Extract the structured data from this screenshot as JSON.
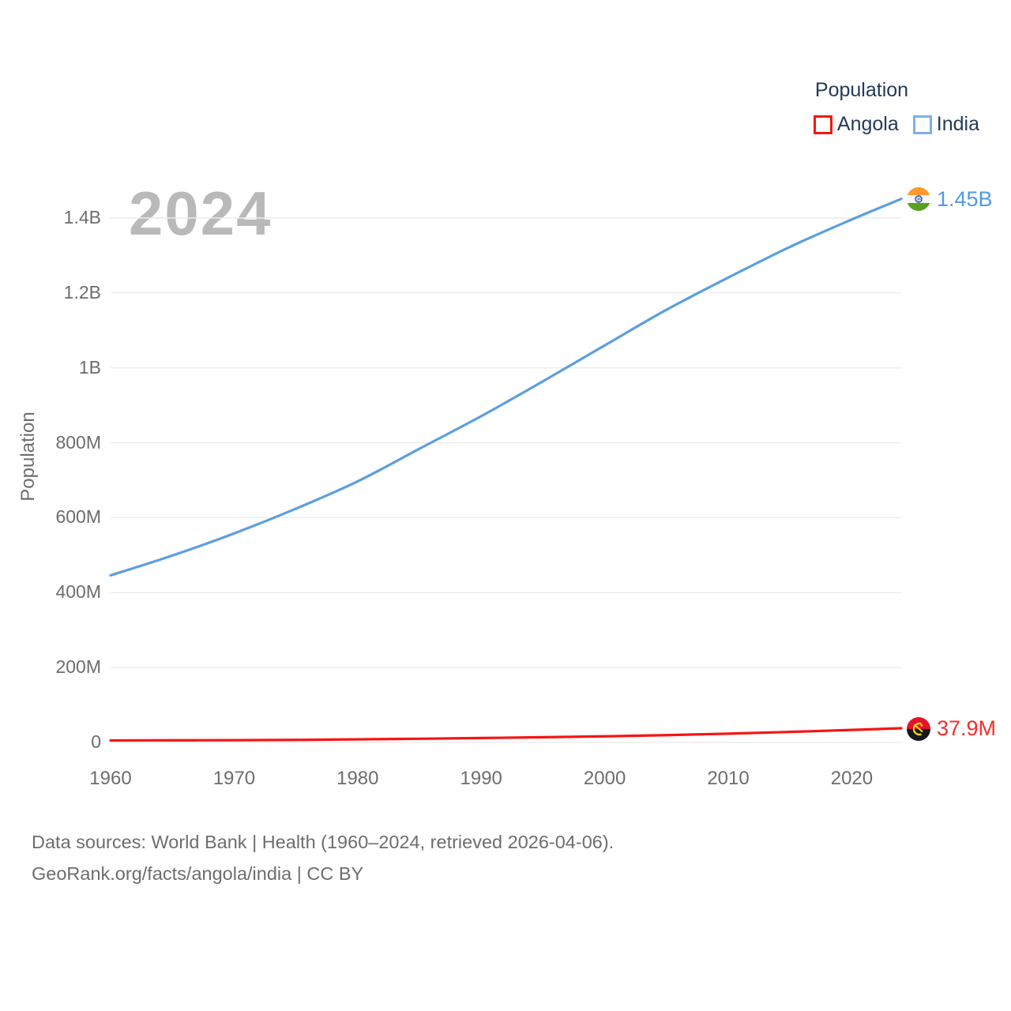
{
  "legend": {
    "title": "Population",
    "items": [
      {
        "label": "Angola",
        "color": "#f81414"
      },
      {
        "label": "India",
        "color": "#7db0e8"
      }
    ]
  },
  "watermark": "2024",
  "axis": {
    "ylabel": "Population",
    "x_ticks": [
      1960,
      1970,
      1980,
      1990,
      2000,
      2010,
      2020
    ],
    "y_ticks": [
      {
        "label": "0",
        "value": 0
      },
      {
        "label": "200M",
        "value": 200
      },
      {
        "label": "400M",
        "value": 400
      },
      {
        "label": "600M",
        "value": 600
      },
      {
        "label": "800M",
        "value": 800
      },
      {
        "label": "1B",
        "value": 1000
      },
      {
        "label": "1.2B",
        "value": 1200
      },
      {
        "label": "1.4B",
        "value": 1400
      }
    ]
  },
  "chart_data": {
    "type": "line",
    "title": "Population",
    "xlabel": "",
    "ylabel": "Population",
    "x_unit": "year",
    "y_unit": "millions",
    "x": [
      1960,
      1965,
      1970,
      1975,
      1980,
      1985,
      1990,
      1995,
      2000,
      2005,
      2010,
      2015,
      2020,
      2024
    ],
    "series": [
      {
        "name": "Angola",
        "color": "#f81414",
        "values": [
          5.4,
          5.8,
          6.0,
          6.8,
          8.3,
          9.9,
          11.8,
          13.9,
          16.4,
          19.5,
          23.4,
          28.2,
          33.4,
          37.9
        ],
        "end_label": "37.9M",
        "flag_icon": "angola-flag-icon"
      },
      {
        "name": "India",
        "color": "#5d9ee0",
        "values": [
          446,
          499,
          558,
          624,
          697,
          784,
          871,
          964,
          1060,
          1155,
          1241,
          1323,
          1396,
          1451
        ],
        "end_label": "1.45B",
        "flag_icon": "india-flag-icon"
      }
    ],
    "xlim": [
      1960,
      2024
    ],
    "ylim": [
      0,
      1450
    ],
    "grid": true,
    "gridline_color": "#ececec",
    "legend_position": "top-right"
  },
  "footer": {
    "line1": "Data sources: World Bank | Health (1960–2024, retrieved 2026-04-06).",
    "line2": "GeoRank.org/facts/angola/india | CC BY"
  }
}
